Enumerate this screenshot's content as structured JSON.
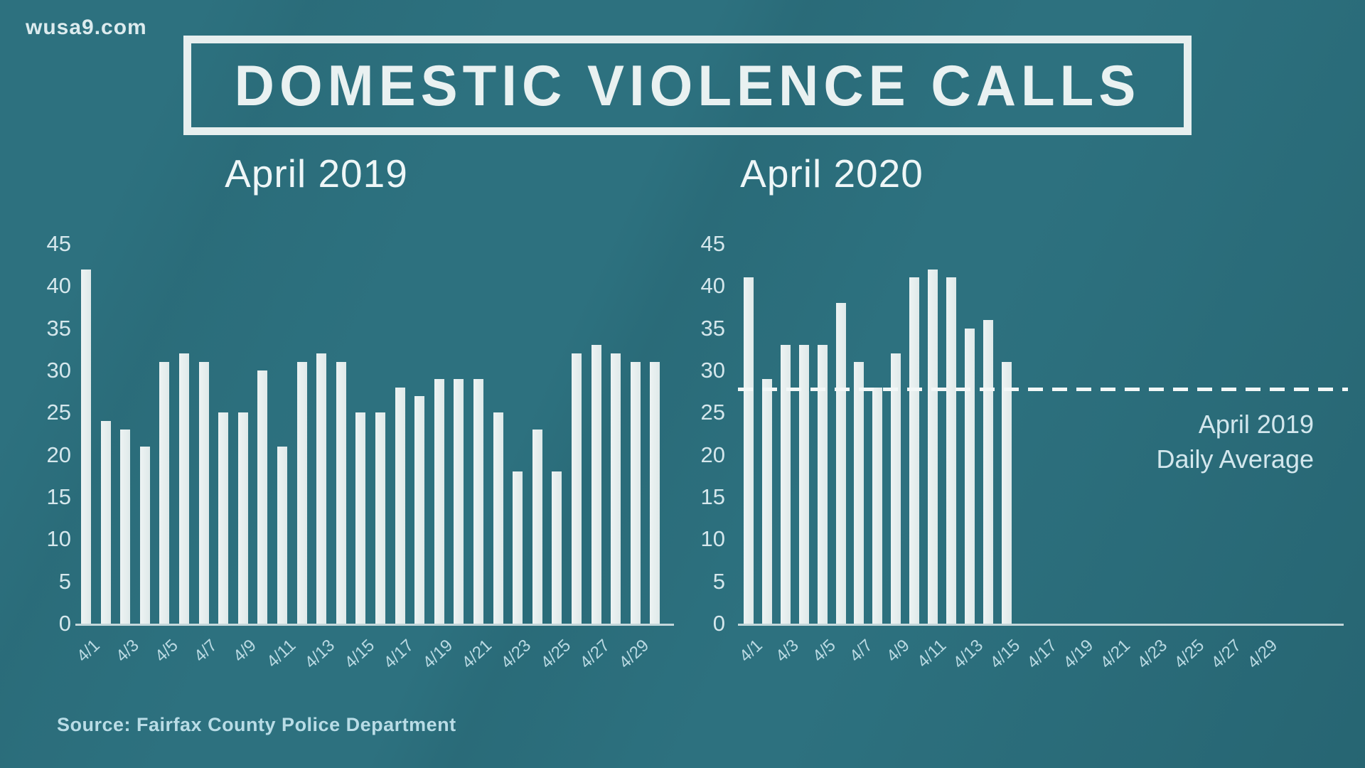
{
  "page": {
    "site": "wusa9.com",
    "title": "DOMESTIC VIOLENCE CALLS",
    "source": "Source: Fairfax County Police Department"
  },
  "colors": {
    "background": "#2d717f",
    "bar": "#e3ecec",
    "title_text": "#e9f1f1",
    "axis_text": "#c8dfe6",
    "dashed_line": "#f2f7f7",
    "source_text": "#b9dce6"
  },
  "chart_data": [
    {
      "type": "bar",
      "title": "April 2019",
      "categories": [
        "4/1",
        "4/2",
        "4/3",
        "4/4",
        "4/5",
        "4/6",
        "4/7",
        "4/8",
        "4/9",
        "4/10",
        "4/11",
        "4/12",
        "4/13",
        "4/14",
        "4/15",
        "4/16",
        "4/17",
        "4/18",
        "4/19",
        "4/20",
        "4/21",
        "4/22",
        "4/23",
        "4/24",
        "4/25",
        "4/26",
        "4/27",
        "4/28",
        "4/29",
        "4/30"
      ],
      "values": [
        42,
        24,
        23,
        21,
        31,
        32,
        31,
        25,
        25,
        30,
        21,
        31,
        32,
        31,
        25,
        25,
        28,
        27,
        29,
        29,
        29,
        25,
        18,
        23,
        18,
        32,
        33,
        32,
        31,
        31
      ],
      "x_tick_labels": [
        "4/1",
        "4/3",
        "4/5",
        "4/7",
        "4/9",
        "4/11",
        "4/13",
        "4/15",
        "4/17",
        "4/19",
        "4/21",
        "4/23",
        "4/25",
        "4/27",
        "4/29"
      ],
      "y_ticks": [
        0,
        5,
        10,
        15,
        20,
        25,
        30,
        35,
        40,
        45
      ],
      "ylim": [
        0,
        45
      ],
      "grid": false,
      "legend": "none"
    },
    {
      "type": "bar",
      "title": "April 2020",
      "categories": [
        "4/1",
        "4/2",
        "4/3",
        "4/4",
        "4/5",
        "4/6",
        "4/7",
        "4/8",
        "4/9",
        "4/10",
        "4/11",
        "4/12",
        "4/13",
        "4/14",
        "4/15"
      ],
      "values": [
        41,
        29,
        33,
        33,
        33,
        38,
        31,
        28,
        32,
        41,
        42,
        41,
        35,
        36,
        31
      ],
      "x_tick_labels": [
        "4/1",
        "4/3",
        "4/5",
        "4/7",
        "4/9",
        "4/11",
        "4/13",
        "4/15",
        "4/17",
        "4/19",
        "4/21",
        "4/23",
        "4/25",
        "4/27",
        "4/29"
      ],
      "y_ticks": [
        0,
        5,
        10,
        15,
        20,
        25,
        30,
        35,
        40,
        45
      ],
      "ylim": [
        0,
        45
      ],
      "grid": false,
      "legend": "none",
      "reference_line": {
        "value": 27.8,
        "label_line1": "April 2019",
        "label_line2": "Daily Average"
      }
    }
  ]
}
